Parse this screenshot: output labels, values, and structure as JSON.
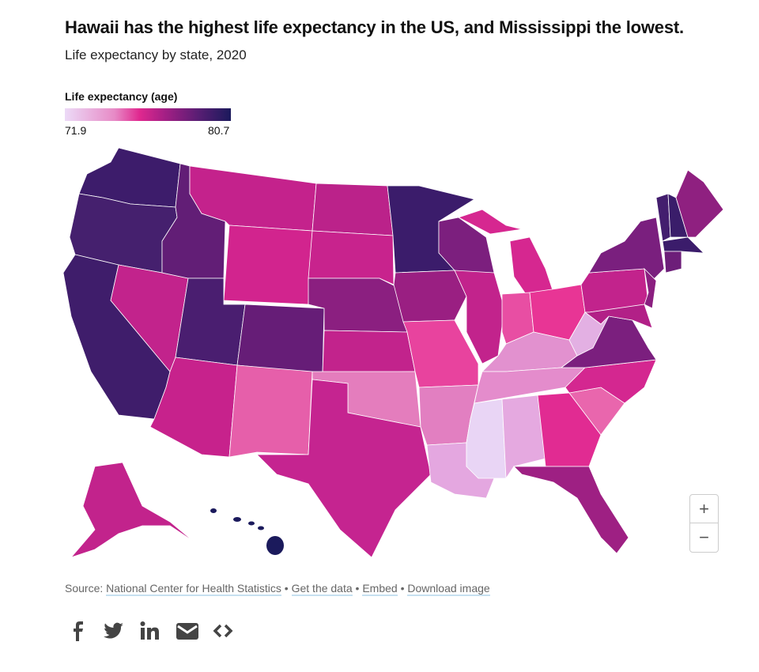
{
  "title": "Hawaii has the highest life expectancy in the US, and Mississippi the lowest.",
  "subtitle": "Life expectancy by state, 2020",
  "legend": {
    "title": "Life expectancy (age)",
    "min": "71.9",
    "max": "80.7",
    "colors": [
      "#ecdaf7",
      "#e78ac6",
      "#e0288f",
      "#a51f85",
      "#5a1e74",
      "#1b1a5c"
    ]
  },
  "states": [
    {
      "id": "WA",
      "fill": "#3d1c6b"
    },
    {
      "id": "OR",
      "fill": "#45206e"
    },
    {
      "id": "CA",
      "fill": "#3f1d6b"
    },
    {
      "id": "NV",
      "fill": "#c2238c"
    },
    {
      "id": "ID",
      "fill": "#621e76"
    },
    {
      "id": "MT",
      "fill": "#c4228c"
    },
    {
      "id": "WY",
      "fill": "#d2248e"
    },
    {
      "id": "UT",
      "fill": "#4a1e70"
    },
    {
      "id": "CO",
      "fill": "#661d77"
    },
    {
      "id": "AZ",
      "fill": "#c7228c"
    },
    {
      "id": "NM",
      "fill": "#e65faa"
    },
    {
      "id": "ND",
      "fill": "#bb228a"
    },
    {
      "id": "SD",
      "fill": "#c8238d"
    },
    {
      "id": "NE",
      "fill": "#8b1f80"
    },
    {
      "id": "KS",
      "fill": "#c2238c"
    },
    {
      "id": "OK",
      "fill": "#e47dbd"
    },
    {
      "id": "TX",
      "fill": "#c52490"
    },
    {
      "id": "MN",
      "fill": "#3b1c6b"
    },
    {
      "id": "IA",
      "fill": "#9a1f82"
    },
    {
      "id": "MO",
      "fill": "#e8439e"
    },
    {
      "id": "AR",
      "fill": "#e27fc1"
    },
    {
      "id": "LA",
      "fill": "#e4a7e0"
    },
    {
      "id": "WI",
      "fill": "#7c1f7e"
    },
    {
      "id": "IL",
      "fill": "#c2238c"
    },
    {
      "id": "MI",
      "fill": "#d62790"
    },
    {
      "id": "IN",
      "fill": "#e84ea3"
    },
    {
      "id": "OH",
      "fill": "#e83595"
    },
    {
      "id": "KY",
      "fill": "#e291cf"
    },
    {
      "id": "TN",
      "fill": "#e48ccc"
    },
    {
      "id": "MS",
      "fill": "#e9d5f5"
    },
    {
      "id": "AL",
      "fill": "#e5a9e0"
    },
    {
      "id": "GA",
      "fill": "#e12b92"
    },
    {
      "id": "FL",
      "fill": "#9e2083"
    },
    {
      "id": "SC",
      "fill": "#e966ad"
    },
    {
      "id": "NC",
      "fill": "#d42790"
    },
    {
      "id": "VA",
      "fill": "#7b1f7e"
    },
    {
      "id": "WV",
      "fill": "#e3b0e3"
    },
    {
      "id": "PA",
      "fill": "#c2238c"
    },
    {
      "id": "NY",
      "fill": "#7a1f7e"
    },
    {
      "id": "NJ",
      "fill": "#8b1f80"
    },
    {
      "id": "MD",
      "fill": "#b22087"
    },
    {
      "id": "VT",
      "fill": "#431e6e"
    },
    {
      "id": "NH",
      "fill": "#3a1d6a"
    },
    {
      "id": "ME",
      "fill": "#8f2080"
    },
    {
      "id": "MA",
      "fill": "#3b1c6b"
    },
    {
      "id": "CT",
      "fill": "#6d1e79"
    },
    {
      "id": "AK",
      "fill": "#c2238c"
    },
    {
      "id": "HI",
      "fill": "#1b1a5c"
    }
  ],
  "zoom": {
    "in": "+",
    "out": "−"
  },
  "footer": {
    "source_label": "Source:",
    "source": "National Center for Health Statistics",
    "sep": "•",
    "get_data": "Get the data",
    "embed": "Embed",
    "download": "Download image"
  },
  "share": [
    "facebook-icon",
    "twitter-icon",
    "linkedin-icon",
    "email-icon",
    "embed-code-icon"
  ]
}
